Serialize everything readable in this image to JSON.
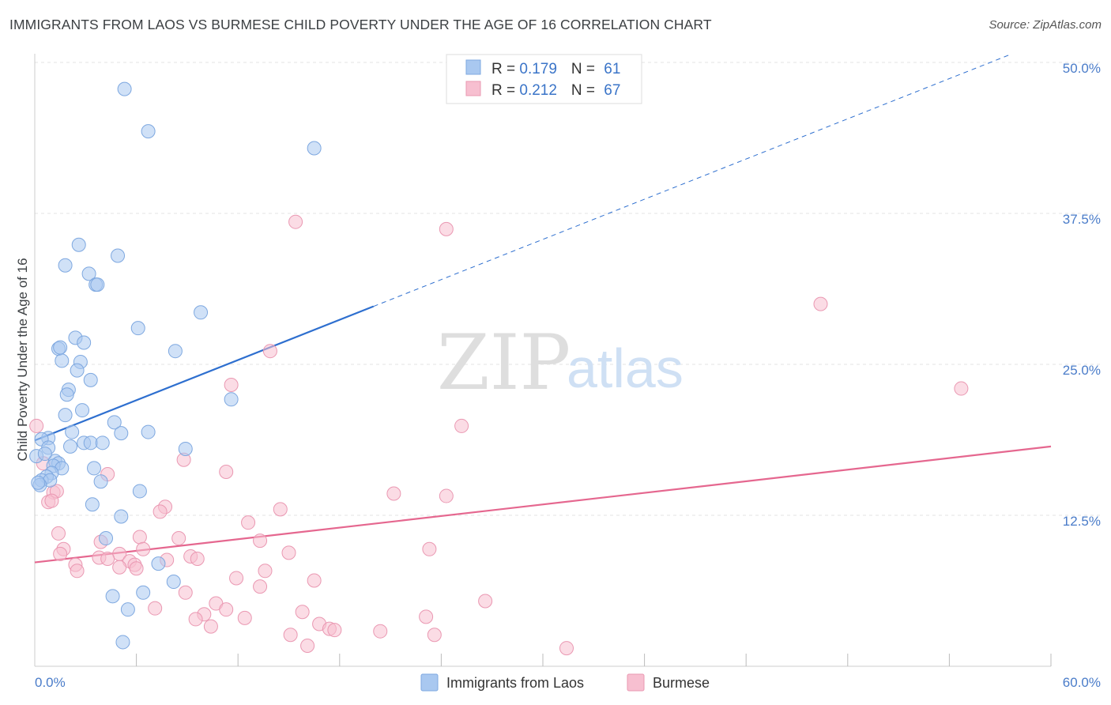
{
  "title": "IMMIGRANTS FROM LAOS VS BURMESE CHILD POVERTY UNDER THE AGE OF 16 CORRELATION CHART",
  "source": "Source: ZipAtlas.com",
  "watermark": {
    "zip": "ZIP",
    "atlas": "atlas"
  },
  "colors": {
    "laos_fill": "#a9c8f0",
    "laos_stroke": "#7ea8e0",
    "laos_line": "#2e6fcf",
    "burmese_fill": "#f7bfd0",
    "burmese_stroke": "#ea98b2",
    "burmese_line": "#e5678f",
    "tick_text": "#4a7cc9",
    "grid": "#e3e3e3"
  },
  "legend": {
    "rows": [
      {
        "r_label": "R = ",
        "r_value": "0.179",
        "n_label": "N = ",
        "n_value": "61"
      },
      {
        "r_label": "R = ",
        "r_value": "0.212",
        "n_label": "N = ",
        "n_value": "67"
      }
    ]
  },
  "bottom_legend": [
    "Immigrants from Laos",
    "Burmese"
  ],
  "chart_data": {
    "type": "scatter",
    "title": "IMMIGRANTS FROM LAOS VS BURMESE CHILD POVERTY UNDER THE AGE OF 16 CORRELATION CHART",
    "xlabel": "",
    "ylabel": "Child Poverty Under the Age of 16",
    "xlim": [
      0,
      60
    ],
    "ylim": [
      0,
      50
    ],
    "x_tick_labels": [
      "0.0%",
      "60.0%"
    ],
    "y_ticks": [
      12.5,
      25.0,
      37.5,
      50.0
    ],
    "y_tick_labels": [
      "12.5%",
      "25.0%",
      "37.5%",
      "50.0%"
    ],
    "grid": true,
    "legend_position": "top-center",
    "series": [
      {
        "name": "Immigrants from Laos",
        "r": 0.179,
        "n": 61,
        "trend": {
          "x0": 0,
          "y0": 18.7,
          "x1": 20,
          "y1": 29.8,
          "dashed_to_x": 57.5,
          "dashed_to_y": 50.6
        },
        "points": [
          [
            5.3,
            47.8
          ],
          [
            6.7,
            44.3
          ],
          [
            16.5,
            42.9
          ],
          [
            2.6,
            34.9
          ],
          [
            4.9,
            34.0
          ],
          [
            1.8,
            33.2
          ],
          [
            3.2,
            32.5
          ],
          [
            3.6,
            31.6
          ],
          [
            3.7,
            31.6
          ],
          [
            9.8,
            29.3
          ],
          [
            6.1,
            28.0
          ],
          [
            2.4,
            27.2
          ],
          [
            2.9,
            26.8
          ],
          [
            1.4,
            26.3
          ],
          [
            1.5,
            26.4
          ],
          [
            8.3,
            26.1
          ],
          [
            1.6,
            25.3
          ],
          [
            2.7,
            25.2
          ],
          [
            2.5,
            24.5
          ],
          [
            3.3,
            23.7
          ],
          [
            2.0,
            22.9
          ],
          [
            1.9,
            22.5
          ],
          [
            11.6,
            22.1
          ],
          [
            2.8,
            21.2
          ],
          [
            1.8,
            20.8
          ],
          [
            4.7,
            20.2
          ],
          [
            2.2,
            19.4
          ],
          [
            6.7,
            19.4
          ],
          [
            0.8,
            18.9
          ],
          [
            0.4,
            18.8
          ],
          [
            5.1,
            19.3
          ],
          [
            2.9,
            18.5
          ],
          [
            3.3,
            18.5
          ],
          [
            4.0,
            18.5
          ],
          [
            2.1,
            18.2
          ],
          [
            0.8,
            18.1
          ],
          [
            8.9,
            18.0
          ],
          [
            1.2,
            17.0
          ],
          [
            1.4,
            16.8
          ],
          [
            1.1,
            16.6
          ],
          [
            1.6,
            16.4
          ],
          [
            3.5,
            16.4
          ],
          [
            1.0,
            16.0
          ],
          [
            0.7,
            15.7
          ],
          [
            0.4,
            15.4
          ],
          [
            0.9,
            15.4
          ],
          [
            3.9,
            15.3
          ],
          [
            0.3,
            15.0
          ],
          [
            6.2,
            14.5
          ],
          [
            3.4,
            13.4
          ],
          [
            5.1,
            12.4
          ],
          [
            4.2,
            10.6
          ],
          [
            7.3,
            8.5
          ],
          [
            8.2,
            7.0
          ],
          [
            4.6,
            5.8
          ],
          [
            6.4,
            6.1
          ],
          [
            5.5,
            4.7
          ],
          [
            5.2,
            2.0
          ],
          [
            0.1,
            17.4
          ],
          [
            0.6,
            17.6
          ],
          [
            0.2,
            15.2
          ]
        ]
      },
      {
        "name": "Burmese",
        "r": 0.212,
        "n": 67,
        "trend": {
          "x0": 0,
          "y0": 8.6,
          "x1": 60,
          "y1": 18.2
        },
        "points": [
          [
            15.4,
            36.8
          ],
          [
            24.3,
            36.2
          ],
          [
            46.4,
            30.0
          ],
          [
            13.9,
            26.1
          ],
          [
            11.6,
            23.3
          ],
          [
            54.7,
            23.0
          ],
          [
            25.2,
            19.9
          ],
          [
            0.1,
            19.9
          ],
          [
            8.8,
            17.1
          ],
          [
            11.3,
            16.1
          ],
          [
            4.3,
            15.9
          ],
          [
            0.5,
            16.8
          ],
          [
            1.1,
            14.4
          ],
          [
            21.2,
            14.3
          ],
          [
            24.3,
            14.1
          ],
          [
            0.8,
            13.6
          ],
          [
            7.7,
            13.2
          ],
          [
            14.5,
            13.0
          ],
          [
            7.4,
            12.8
          ],
          [
            12.6,
            11.9
          ],
          [
            1.4,
            11.0
          ],
          [
            6.2,
            10.7
          ],
          [
            8.5,
            10.6
          ],
          [
            13.3,
            10.4
          ],
          [
            3.9,
            10.3
          ],
          [
            6.4,
            9.7
          ],
          [
            1.7,
            9.7
          ],
          [
            23.3,
            9.7
          ],
          [
            5.0,
            9.3
          ],
          [
            1.5,
            9.3
          ],
          [
            15.0,
            9.4
          ],
          [
            9.2,
            9.1
          ],
          [
            9.6,
            8.9
          ],
          [
            3.8,
            9.0
          ],
          [
            4.3,
            8.9
          ],
          [
            7.8,
            8.8
          ],
          [
            5.6,
            8.7
          ],
          [
            2.4,
            8.4
          ],
          [
            5.9,
            8.4
          ],
          [
            5.0,
            8.2
          ],
          [
            6.0,
            8.1
          ],
          [
            2.5,
            7.9
          ],
          [
            13.6,
            7.9
          ],
          [
            11.9,
            7.3
          ],
          [
            16.5,
            7.1
          ],
          [
            13.3,
            6.6
          ],
          [
            8.9,
            6.1
          ],
          [
            26.6,
            5.4
          ],
          [
            10.7,
            5.2
          ],
          [
            7.1,
            4.8
          ],
          [
            11.3,
            4.7
          ],
          [
            15.8,
            4.5
          ],
          [
            10.0,
            4.3
          ],
          [
            12.4,
            4.0
          ],
          [
            9.5,
            3.9
          ],
          [
            23.1,
            4.1
          ],
          [
            16.8,
            3.5
          ],
          [
            10.4,
            3.3
          ],
          [
            17.4,
            3.1
          ],
          [
            17.7,
            3.0
          ],
          [
            20.4,
            2.9
          ],
          [
            15.1,
            2.6
          ],
          [
            23.6,
            2.6
          ],
          [
            16.1,
            1.7
          ],
          [
            31.4,
            1.5
          ],
          [
            1.3,
            14.5
          ],
          [
            1.0,
            13.7
          ]
        ]
      }
    ]
  }
}
